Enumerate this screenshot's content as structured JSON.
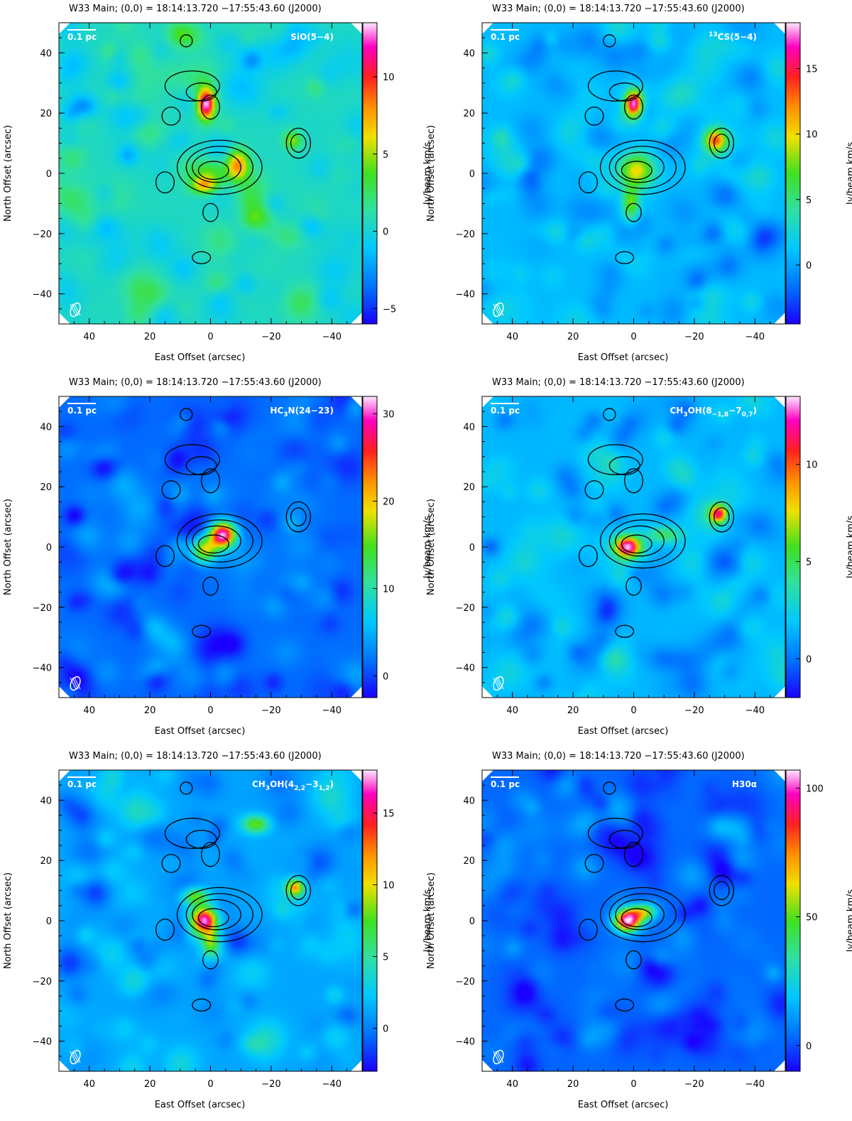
{
  "figure": {
    "panel_title": "W33 Main; (0,0) = 18:14:13.720      −17:55:43.60 (J2000)",
    "xlabel": "East Offset (arcsec)",
    "ylabel": "North Offset (arcsec)",
    "colorbar_label": "Jy/beam km/s",
    "scale_bar_label": "0.1 pc"
  },
  "chart_data": [
    {
      "type": "heatmap",
      "line": "SiO(5−4)",
      "line_parts": {
        "pre": "SiO(5−4)",
        "sub1": "",
        "mid": "",
        "sub2": "",
        "post": ""
      },
      "title": "W33 Main; (0,0) = 18:14:13.720      −17:55:43.60 (J2000)",
      "xlabel": "East Offset (arcsec)",
      "ylabel": "North Offset (arcsec)",
      "xlim": [
        50,
        -50
      ],
      "ylim": [
        -50,
        50
      ],
      "xticks": [
        40,
        20,
        0,
        -20,
        -40
      ],
      "yticks": [
        40,
        20,
        0,
        -20,
        -40
      ],
      "colorbar": {
        "label": "Jy/beam km/s",
        "range": [
          -6,
          13.5
        ],
        "ticks": [
          10,
          5,
          0,
          -5
        ]
      },
      "background_level": 0.5,
      "peaks": [
        {
          "x": 1.5,
          "y": 23,
          "value": 13.5,
          "sx": 2.0,
          "sy": 3.5
        },
        {
          "x": -9,
          "y": 3,
          "value": 8,
          "sx": 2.5,
          "sy": 3.5
        },
        {
          "x": 2,
          "y": -4,
          "value": 7,
          "sx": 3,
          "sy": 2
        },
        {
          "x": -27,
          "y": 11,
          "value": 5,
          "sx": 2,
          "sy": 2
        },
        {
          "x": 0,
          "y": 0,
          "value": 4,
          "sx": 5,
          "sy": 3
        }
      ]
    },
    {
      "type": "heatmap",
      "line": "13CS(5−4)",
      "line_parts": {
        "pre": "",
        "sup": "13",
        "mid": "CS(5−4)",
        "sub1": "",
        "sub2": "",
        "post": ""
      },
      "title": "W33 Main; (0,0) = 18:14:13.720      −17:55:43.60 (J2000)",
      "xlabel": "East Offset (arcsec)",
      "ylabel": "North Offset (arcsec)",
      "xlim": [
        50,
        -50
      ],
      "ylim": [
        -50,
        50
      ],
      "xticks": [
        40,
        20,
        0,
        -20,
        -40
      ],
      "yticks": [
        40,
        20,
        0,
        -20,
        -40
      ],
      "colorbar": {
        "label": "Jy/beam km/s",
        "range": [
          -4.5,
          18.5
        ],
        "ticks": [
          15,
          10,
          5,
          0
        ]
      },
      "background_level": 0.8,
      "peaks": [
        {
          "x": 0,
          "y": 23,
          "value": 18.5,
          "sx": 2,
          "sy": 3
        },
        {
          "x": -27,
          "y": 11,
          "value": 12,
          "sx": 2.5,
          "sy": 2.5
        },
        {
          "x": -1,
          "y": 1,
          "value": 10,
          "sx": 4,
          "sy": 4
        },
        {
          "x": 1,
          "y": -10,
          "value": 8,
          "sx": 2,
          "sy": 4
        }
      ]
    },
    {
      "type": "heatmap",
      "line": "HC3N(24−23)",
      "line_parts": {
        "pre": "HC",
        "sub1": "3",
        "mid": "N(24−23)",
        "sub2": "",
        "post": ""
      },
      "title": "W33 Main; (0,0) = 18:14:13.720      −17:55:43.60 (J2000)",
      "xlabel": "East Offset (arcsec)",
      "ylabel": "North Offset (arcsec)",
      "xlim": [
        50,
        -50
      ],
      "ylim": [
        -50,
        50
      ],
      "xticks": [
        40,
        20,
        0,
        -20,
        -40
      ],
      "yticks": [
        40,
        20,
        0,
        -20,
        -40
      ],
      "colorbar": {
        "label": "Jy/beam km/s",
        "range": [
          -2.5,
          32
        ],
        "ticks": [
          30,
          20,
          10,
          0
        ]
      },
      "background_level": 1.5,
      "peaks": [
        {
          "x": -4,
          "y": 4,
          "value": 32,
          "sx": 3,
          "sy": 3
        },
        {
          "x": 2,
          "y": -1,
          "value": 18,
          "sx": 3,
          "sy": 3
        }
      ]
    },
    {
      "type": "heatmap",
      "line": "CH3OH(8−1,8−7 0,7)",
      "line_parts": {
        "pre": "CH",
        "sub1": "3",
        "mid": "OH(8",
        "sub2": "−1,8",
        "mid2": "−7",
        "sub3": "0,7",
        "post": ")"
      },
      "title": "W33 Main; (0,0) = 18:14:13.720      −17:55:43.60 (J2000)",
      "xlabel": "East Offset (arcsec)",
      "ylabel": "North Offset (arcsec)",
      "xlim": [
        50,
        -50
      ],
      "ylim": [
        -50,
        50
      ],
      "xticks": [
        40,
        20,
        0,
        -20,
        -40
      ],
      "yticks": [
        40,
        20,
        0,
        -20,
        -40
      ],
      "colorbar": {
        "label": "Jy/beam km/s",
        "range": [
          -2,
          13.5
        ],
        "ticks": [
          10,
          5,
          0
        ]
      },
      "background_level": 1.5,
      "peaks": [
        {
          "x": 2,
          "y": 0,
          "value": 13.5,
          "sx": 3,
          "sy": 2.5
        },
        {
          "x": -28,
          "y": 11,
          "value": 11,
          "sx": 2,
          "sy": 2
        },
        {
          "x": -10,
          "y": 4,
          "value": 5,
          "sx": 4,
          "sy": 2
        }
      ]
    },
    {
      "type": "heatmap",
      "line": "CH3OH(4 2,2−3 1,2)",
      "line_parts": {
        "pre": "CH",
        "sub1": "3",
        "mid": "OH(4",
        "sub2": "2,2",
        "mid2": "−3",
        "sub3": "1,2",
        "post": ")"
      },
      "title": "W33 Main; (0,0) = 18:14:13.720      −17:55:43.60 (J2000)",
      "xlabel": "East Offset (arcsec)",
      "ylabel": "North Offset (arcsec)",
      "xlim": [
        50,
        -50
      ],
      "ylim": [
        -50,
        50
      ],
      "xticks": [
        40,
        20,
        0,
        -20,
        -40
      ],
      "yticks": [
        40,
        20,
        0,
        -20,
        -40
      ],
      "colorbar": {
        "label": "Jy/beam km/s",
        "range": [
          -3,
          18
        ],
        "ticks": [
          15,
          10,
          5,
          0
        ]
      },
      "background_level": 1.2,
      "peaks": [
        {
          "x": 2,
          "y": 0,
          "value": 18,
          "sx": 3,
          "sy": 3
        },
        {
          "x": -28,
          "y": 11,
          "value": 12,
          "sx": 2,
          "sy": 2
        },
        {
          "x": -15,
          "y": 32,
          "value": 8,
          "sx": 3,
          "sy": 2
        },
        {
          "x": 5,
          "y": 8,
          "value": 8,
          "sx": 3,
          "sy": 2
        },
        {
          "x": 0,
          "y": -7,
          "value": 8,
          "sx": 2,
          "sy": 3
        }
      ]
    },
    {
      "type": "heatmap",
      "line": "H30α",
      "line_parts": {
        "pre": "H30α",
        "sub1": "",
        "mid": "",
        "sub2": "",
        "post": ""
      },
      "title": "W33 Main; (0,0) = 18:14:13.720      −17:55:43.60 (J2000)",
      "xlabel": "East Offset (arcsec)",
      "ylabel": "North Offset (arcsec)",
      "xlim": [
        50,
        -50
      ],
      "ylim": [
        -50,
        50
      ],
      "xticks": [
        40,
        20,
        0,
        -20,
        -40
      ],
      "yticks": [
        40,
        20,
        0,
        -20,
        -40
      ],
      "colorbar": {
        "label": "Jy/beam km/s",
        "range": [
          -10,
          107
        ],
        "ticks": [
          100,
          50,
          0
        ]
      },
      "background_level": 3,
      "peaks": [
        {
          "x": 2,
          "y": 0,
          "value": 107,
          "sx": 3,
          "sy": 2.5
        },
        {
          "x": -3,
          "y": 3,
          "value": 60,
          "sx": 3,
          "sy": 2
        }
      ]
    }
  ],
  "contours": [
    {
      "x": 6,
      "y": 29,
      "rx": 9,
      "ry": 5
    },
    {
      "x": 3,
      "y": 27,
      "rx": 5,
      "ry": 3
    },
    {
      "x": 0,
      "y": 22,
      "rx": 3,
      "ry": 4
    },
    {
      "x": 13,
      "y": 19,
      "rx": 3,
      "ry": 3
    },
    {
      "x": 8,
      "y": 44,
      "rx": 2,
      "ry": 2
    },
    {
      "x": 15,
      "y": -3,
      "rx": 3,
      "ry": 3.5
    },
    {
      "x": 0,
      "y": -13,
      "rx": 2.5,
      "ry": 3
    },
    {
      "x": 3,
      "y": -28,
      "rx": 3,
      "ry": 2
    },
    {
      "x": -29,
      "y": 10,
      "rx": 4,
      "ry": 5
    },
    {
      "x": -29,
      "y": 10,
      "rx": 2.5,
      "ry": 3
    },
    {
      "x": -3,
      "y": 2,
      "rx": 14,
      "ry": 9
    },
    {
      "x": -3,
      "y": 2,
      "rx": 11,
      "ry": 7
    },
    {
      "x": -2,
      "y": 2,
      "rx": 8,
      "ry": 5
    },
    {
      "x": -1,
      "y": 1,
      "rx": 5,
      "ry": 3
    }
  ]
}
